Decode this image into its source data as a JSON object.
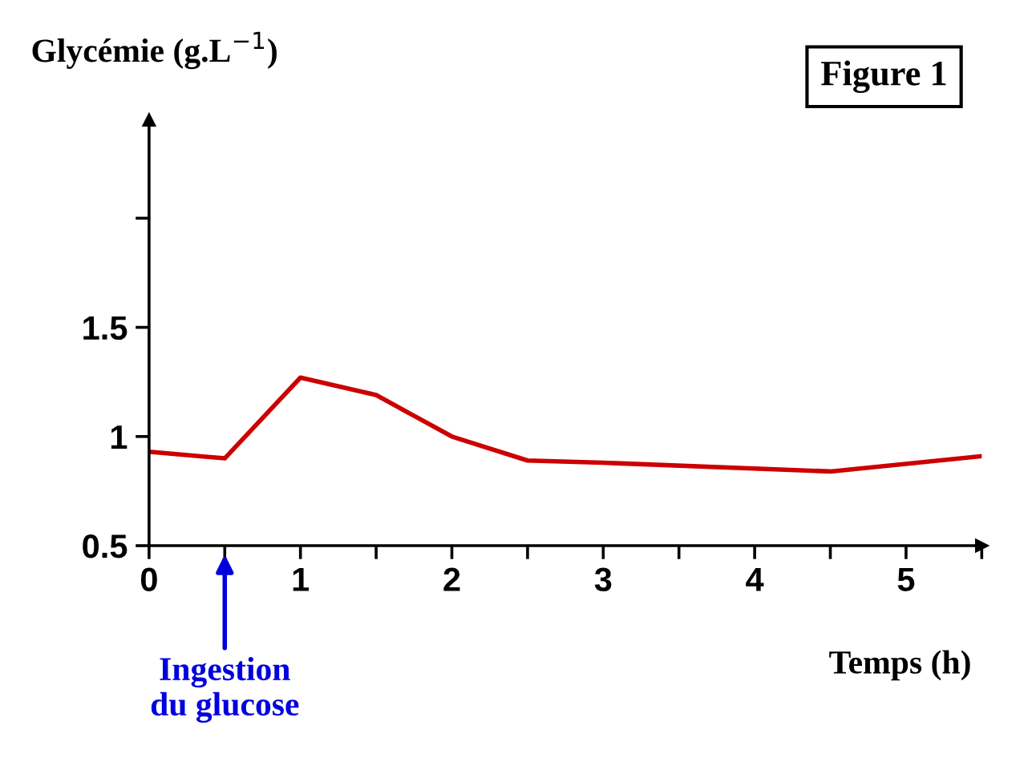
{
  "chart_data": {
    "type": "line",
    "title": "Figure 1",
    "xlabel": "Temps (h)",
    "ylabel": "Glycémie (g.L$^{−1}$)",
    "x": [
      0,
      0.5,
      1,
      1.5,
      2,
      2.5,
      3,
      4.5,
      5.5
    ],
    "series": [
      {
        "color": "#cc0000",
        "values": [
          0.93,
          0.9,
          1.27,
          1.19,
          1.0,
          0.89,
          0.88,
          0.84,
          0.91
        ]
      }
    ],
    "xlim": [
      0,
      5.5
    ],
    "ylim": [
      0.5,
      2.45
    ],
    "xticks": [
      0,
      {
        "value": 0.5,
        "label": null
      },
      1,
      {
        "value": 1.5,
        "label": null
      },
      2,
      {
        "value": 2.5,
        "label": null
      },
      3,
      {
        "value": 3.5,
        "label": null
      },
      4,
      {
        "value": 4.5,
        "label": null
      },
      5,
      {
        "value": 5.5,
        "label": null
      }
    ],
    "yticks": [
      0.5,
      1,
      1.5,
      {
        "value": 2,
        "label": null
      }
    ],
    "annotations": [
      "Ingestion\ndu glucose"
    ],
    "grid": false,
    "legend": false,
    "marker": "none",
    "line_style": "solid"
  }
}
